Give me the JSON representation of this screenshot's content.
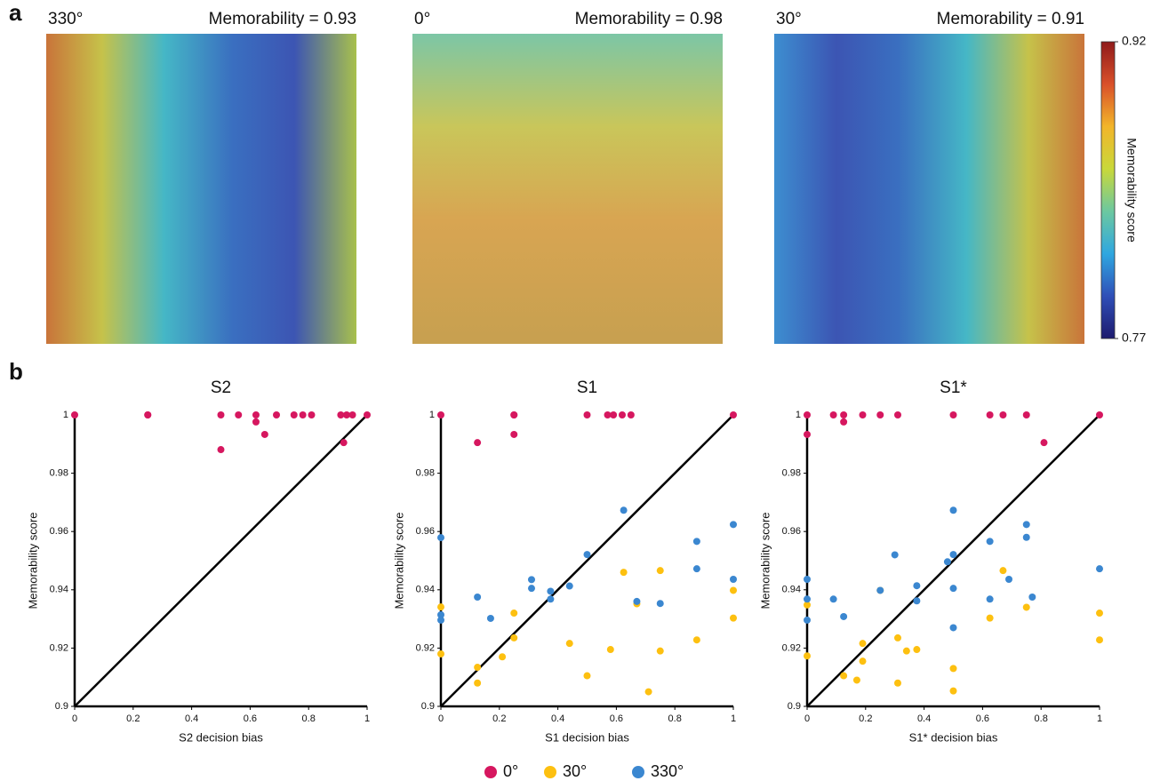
{
  "panel_labels": [
    "a",
    "b"
  ],
  "heatmaps": [
    {
      "angle": "330°",
      "memorability": "Memorability = 0.93"
    },
    {
      "angle": "0°",
      "memorability": "Memorability = 0.98"
    },
    {
      "angle": "30°",
      "memorability": "Memorability = 0.91"
    }
  ],
  "colorbar": {
    "label": "Memorability score",
    "range": [
      0.77,
      0.92
    ],
    "ticks": [
      0.77,
      0.92
    ],
    "colors": [
      "#1d1a6e",
      "#2f4fb8",
      "#2fa7e0",
      "#6cc8a0",
      "#c9d83a",
      "#f2b52a",
      "#d9502a",
      "#8f1a1a"
    ]
  },
  "chart_data": [
    {
      "type": "scatter",
      "title": "S2",
      "x_label": "S2 decision bias",
      "y_label": "Memorability score",
      "xlim": [
        0,
        1
      ],
      "ylim": [
        0.9,
        1
      ],
      "xticks": [
        0,
        0.2,
        0.4,
        0.6,
        0.8,
        1
      ],
      "yticks": [
        0.9,
        0.92,
        0.94,
        0.96,
        0.98,
        1
      ],
      "series": [
        {
          "name": "0°",
          "color": "#d6175f",
          "x": [
            0,
            0.25,
            0.25,
            0.5,
            0.56,
            0.62,
            0.69,
            0.75,
            0.78,
            0.81,
            0.91,
            0.93,
            0.95,
            1,
            0.62,
            0.65,
            0.5,
            0.92
          ],
          "values": [
            1,
            1,
            1,
            1,
            1,
            1,
            1,
            1,
            1,
            1,
            1,
            1,
            1,
            1,
            0.9976,
            0.9933,
            0.9881,
            0.9905
          ]
        }
      ]
    },
    {
      "type": "scatter",
      "title": "S1",
      "x_label": "S1 decision bias",
      "y_label": "Memorability score",
      "xlim": [
        0,
        1
      ],
      "ylim": [
        0.9,
        1
      ],
      "xticks": [
        0,
        0.2,
        0.4,
        0.6,
        0.8,
        1
      ],
      "yticks": [
        0.9,
        0.92,
        0.94,
        0.96,
        0.98,
        1
      ],
      "series": [
        {
          "name": "0°",
          "color": "#d6175f",
          "x": [
            0,
            0.25,
            0.25,
            0.5,
            0.57,
            0.59,
            0.62,
            0.65,
            1,
            0.125,
            0.25
          ],
          "values": [
            1,
            1,
            1,
            1,
            1,
            1,
            1,
            1,
            1,
            0.9905,
            0.9933
          ]
        },
        {
          "name": "30°",
          "color": "#fdc010",
          "x": [
            0,
            0,
            0.125,
            0.125,
            0.21,
            0.25,
            0.25,
            0.44,
            0.5,
            0.58,
            0.625,
            0.67,
            0.71,
            0.75,
            0.75,
            0.875,
            1,
            1
          ],
          "values": [
            0.918,
            0.9341,
            0.9134,
            0.908,
            0.917,
            0.932,
            0.9235,
            0.9216,
            0.9105,
            0.9195,
            0.946,
            0.9352,
            0.905,
            0.9466,
            0.919,
            0.9228,
            0.9398,
            0.9303
          ]
        },
        {
          "name": "330°",
          "color": "#3b87d0",
          "x": [
            0,
            0,
            0,
            0.125,
            0.17,
            0.31,
            0.31,
            0.375,
            0.375,
            0.44,
            0.5,
            0.625,
            0.67,
            0.75,
            0.875,
            0.875,
            1,
            1
          ],
          "values": [
            0.9579,
            0.9314,
            0.9296,
            0.9375,
            0.9302,
            0.9435,
            0.9405,
            0.9395,
            0.9368,
            0.9413,
            0.9521,
            0.9673,
            0.936,
            0.9353,
            0.9566,
            0.9472,
            0.9624,
            0.9436
          ]
        }
      ]
    },
    {
      "type": "scatter",
      "title": "S1*",
      "x_label": "S1* decision bias",
      "y_label": "Memorability score",
      "xlim": [
        0,
        1
      ],
      "ylim": [
        0.9,
        1
      ],
      "xticks": [
        0,
        0.2,
        0.4,
        0.6,
        0.8,
        1
      ],
      "yticks": [
        0.9,
        0.92,
        0.94,
        0.96,
        0.98,
        1
      ],
      "series": [
        {
          "name": "0°",
          "color": "#d6175f",
          "x": [
            0,
            0,
            0.09,
            0.125,
            0.125,
            0.19,
            0.25,
            0.31,
            0.5,
            0.625,
            0.67,
            0.75,
            1,
            0.81
          ],
          "values": [
            1,
            0.9933,
            1,
            1,
            0.9976,
            1,
            1,
            1,
            1,
            1,
            1,
            1,
            1,
            0.9905
          ]
        },
        {
          "name": "30°",
          "color": "#fdc010",
          "x": [
            0,
            0,
            0.125,
            0.17,
            0.19,
            0.19,
            0.25,
            0.31,
            0.31,
            0.34,
            0.375,
            0.5,
            0.5,
            0.625,
            0.67,
            0.75,
            1,
            1
          ],
          "values": [
            0.9348,
            0.9173,
            0.9105,
            0.909,
            0.9216,
            0.9155,
            0.9398,
            0.9235,
            0.908,
            0.919,
            0.9195,
            0.913,
            0.9053,
            0.9303,
            0.9466,
            0.934,
            0.932,
            0.9228
          ]
        },
        {
          "name": "330°",
          "color": "#3b87d0",
          "x": [
            0,
            0,
            0,
            0.09,
            0.125,
            0.25,
            0.3,
            0.375,
            0.375,
            0.48,
            0.5,
            0.5,
            0.5,
            0.5,
            0.625,
            0.625,
            0.69,
            0.75,
            0.75,
            0.77,
            1
          ],
          "values": [
            0.9436,
            0.9368,
            0.9296,
            0.9368,
            0.9308,
            0.9398,
            0.952,
            0.9414,
            0.9362,
            0.9496,
            0.9673,
            0.9521,
            0.9405,
            0.927,
            0.9566,
            0.9368,
            0.9436,
            0.9624,
            0.958,
            0.9375,
            0.9472
          ]
        }
      ]
    }
  ]
}
